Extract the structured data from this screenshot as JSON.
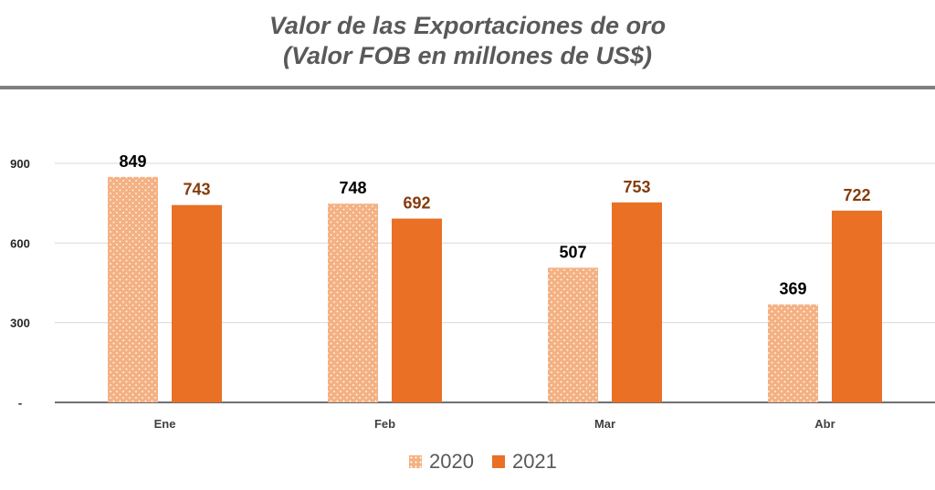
{
  "title": {
    "line1": "Valor de las Exportaciones de oro",
    "line2": "(Valor FOB en millones de US$)"
  },
  "chart_data": {
    "type": "bar",
    "categories": [
      "Ene",
      "Feb",
      "Mar",
      "Abr"
    ],
    "series": [
      {
        "name": "2020",
        "values": [
          849,
          748,
          507,
          369
        ],
        "color": "#f4b183",
        "pattern": "dotted",
        "label_color": "#000000"
      },
      {
        "name": "2021",
        "values": [
          743,
          692,
          753,
          722
        ],
        "color": "#e97025",
        "pattern": "solid",
        "label_color": "#843c0c"
      }
    ],
    "yticks": [
      {
        "value": 0,
        "label": "-"
      },
      {
        "value": 300,
        "label": "300"
      },
      {
        "value": 600,
        "label": "600"
      },
      {
        "value": 900,
        "label": "900"
      }
    ],
    "ylim": [
      0,
      900
    ],
    "grid": true,
    "legend": "bottom-center",
    "xlabel": "",
    "ylabel": ""
  }
}
